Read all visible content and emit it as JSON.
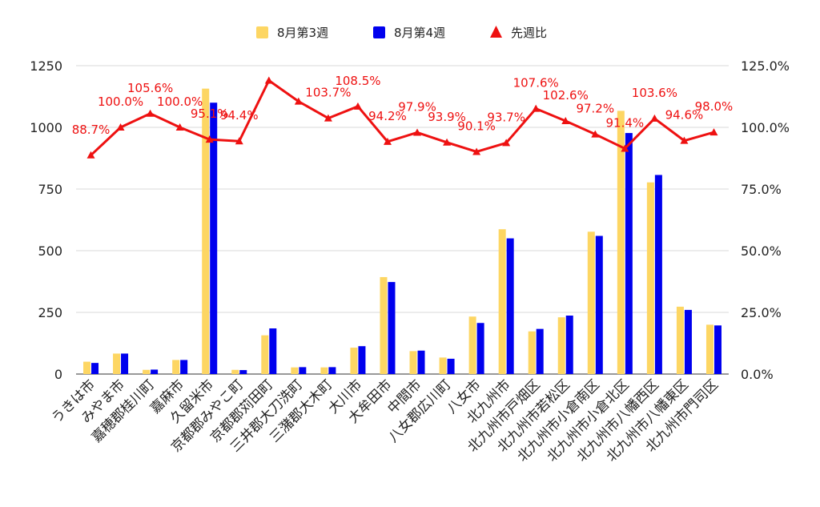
{
  "chart_data": {
    "type": "bar",
    "categories": [
      "うきは市",
      "みやま市",
      "嘉穂郡桂川町",
      "嘉麻市",
      "久留米市",
      "京都郡みやこ町",
      "京都郡苅田町",
      "三井郡大刀洗町",
      "三潴郡大木町",
      "大川市",
      "大牟田市",
      "中間市",
      "八女郡広川町",
      "八女市",
      "北九州市",
      "北九州市戸畑区",
      "北九州市若松区",
      "北九州市小倉南区",
      "北九州市小倉北区",
      "北九州市八幡西区",
      "北九州市八幡東区",
      "北九州市門司区"
    ],
    "series": [
      {
        "name": "8月第3週",
        "type": "bar",
        "axis": "left",
        "color": "#fdd663",
        "values": [
          50,
          83,
          17,
          57,
          1157,
          17,
          157,
          27,
          27,
          107,
          393,
          93,
          67,
          233,
          587,
          173,
          230,
          577,
          1067,
          777,
          273,
          200
        ]
      },
      {
        "name": "8月第4週",
        "type": "bar",
        "axis": "left",
        "color": "#0000ee",
        "values": [
          45,
          83,
          18,
          57,
          1100,
          16,
          185,
          28,
          28,
          113,
          373,
          95,
          62,
          207,
          550,
          183,
          237,
          560,
          977,
          807,
          260,
          197
        ]
      },
      {
        "name": "先週比",
        "type": "line",
        "axis": "right",
        "color": "#ee1111",
        "values": [
          88.7,
          100.0,
          105.6,
          100.0,
          95.1,
          94.4,
          119.0,
          110.5,
          103.7,
          108.5,
          94.2,
          97.9,
          93.9,
          90.1,
          93.7,
          107.6,
          102.6,
          97.2,
          91.4,
          103.6,
          94.6,
          98.0
        ],
        "labels": [
          "88.7%",
          "100.0%",
          "105.6%",
          "100.0%",
          "95.1%",
          "94.4%",
          "",
          "",
          "103.7%",
          "108.5%",
          "94.2%",
          "97.9%",
          "93.9%",
          "90.1%",
          "93.7%",
          "107.6%",
          "102.6%",
          "97.2%",
          "91.4%",
          "103.6%",
          "94.6%",
          "98.0%"
        ]
      }
    ],
    "y_left": {
      "min": 0,
      "max": 1250,
      "ticks": [
        "0",
        "250",
        "500",
        "750",
        "1000",
        "1250"
      ]
    },
    "y_right": {
      "min": 0,
      "max": 125,
      "ticks": [
        "0.0%",
        "25.0%",
        "50.0%",
        "75.0%",
        "100.0%",
        "125.0%"
      ]
    },
    "legend_position": "top",
    "grid": true
  }
}
